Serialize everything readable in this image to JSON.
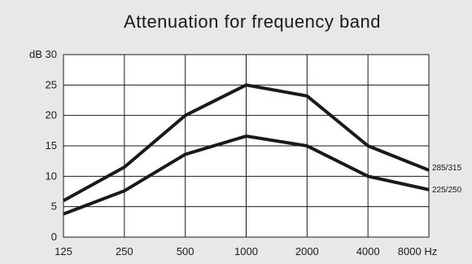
{
  "chart_data": {
    "type": "line",
    "title": "Attenuation for frequency band",
    "categories": [
      "125",
      "250",
      "500",
      "1000",
      "2000",
      "4000",
      "8000"
    ],
    "x_unit": "Hz",
    "y_unit": "dB",
    "ylim": [
      0,
      30
    ],
    "yticks": [
      0,
      5,
      10,
      15,
      20,
      25,
      30
    ],
    "grid": true,
    "series": [
      {
        "name": "285/315",
        "values": [
          6,
          11.5,
          20,
          25,
          23.2,
          15,
          11
        ]
      },
      {
        "name": "225/250",
        "values": [
          3.8,
          7.6,
          13.6,
          16.6,
          15,
          10,
          7.8
        ]
      }
    ],
    "line_color": "#1a1a1a",
    "background_color": "#e8e8e8",
    "plot_background": "#ffffff"
  }
}
